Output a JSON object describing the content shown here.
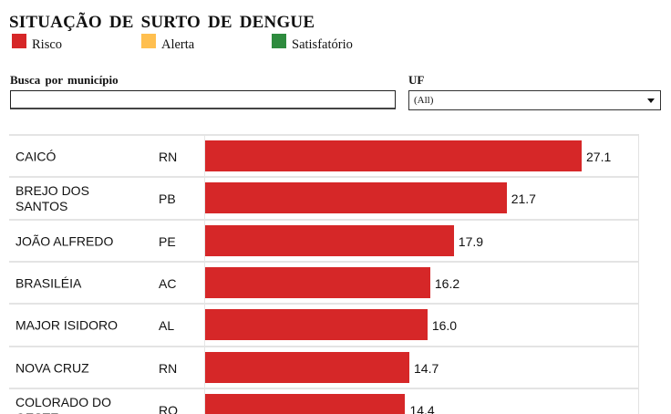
{
  "title": "SITUAÇÃO DE SURTO DE DENGUE",
  "legend": [
    {
      "label": "Risco",
      "color": "#d62728"
    },
    {
      "label": "Alerta",
      "color": "#ffbf4f"
    },
    {
      "label": "Satisfatório",
      "color": "#2e8b3e"
    }
  ],
  "filters": {
    "search_label": "Busca por município",
    "search_value": "",
    "uf_label": "UF",
    "uf_value": "(All)"
  },
  "chart_data": {
    "type": "bar",
    "orientation": "horizontal",
    "categories": [
      "CAICÓ",
      "BREJO DOS SANTOS",
      "JOÃO ALFREDO",
      "BRASILÉIA",
      "MAJOR ISIDORO",
      "NOVA CRUZ",
      "COLORADO DO OESTE"
    ],
    "uf": [
      "RN",
      "PB",
      "PE",
      "AC",
      "AL",
      "RN",
      "RO"
    ],
    "values": [
      27.1,
      21.7,
      17.9,
      16.2,
      16.0,
      14.7,
      14.4
    ],
    "value_labels": [
      "27.1",
      "21.7",
      "17.9",
      "16.2",
      "16.0",
      "14.7",
      "14.4"
    ],
    "bar_color": "#d62728",
    "xlim": [
      0,
      30
    ]
  }
}
